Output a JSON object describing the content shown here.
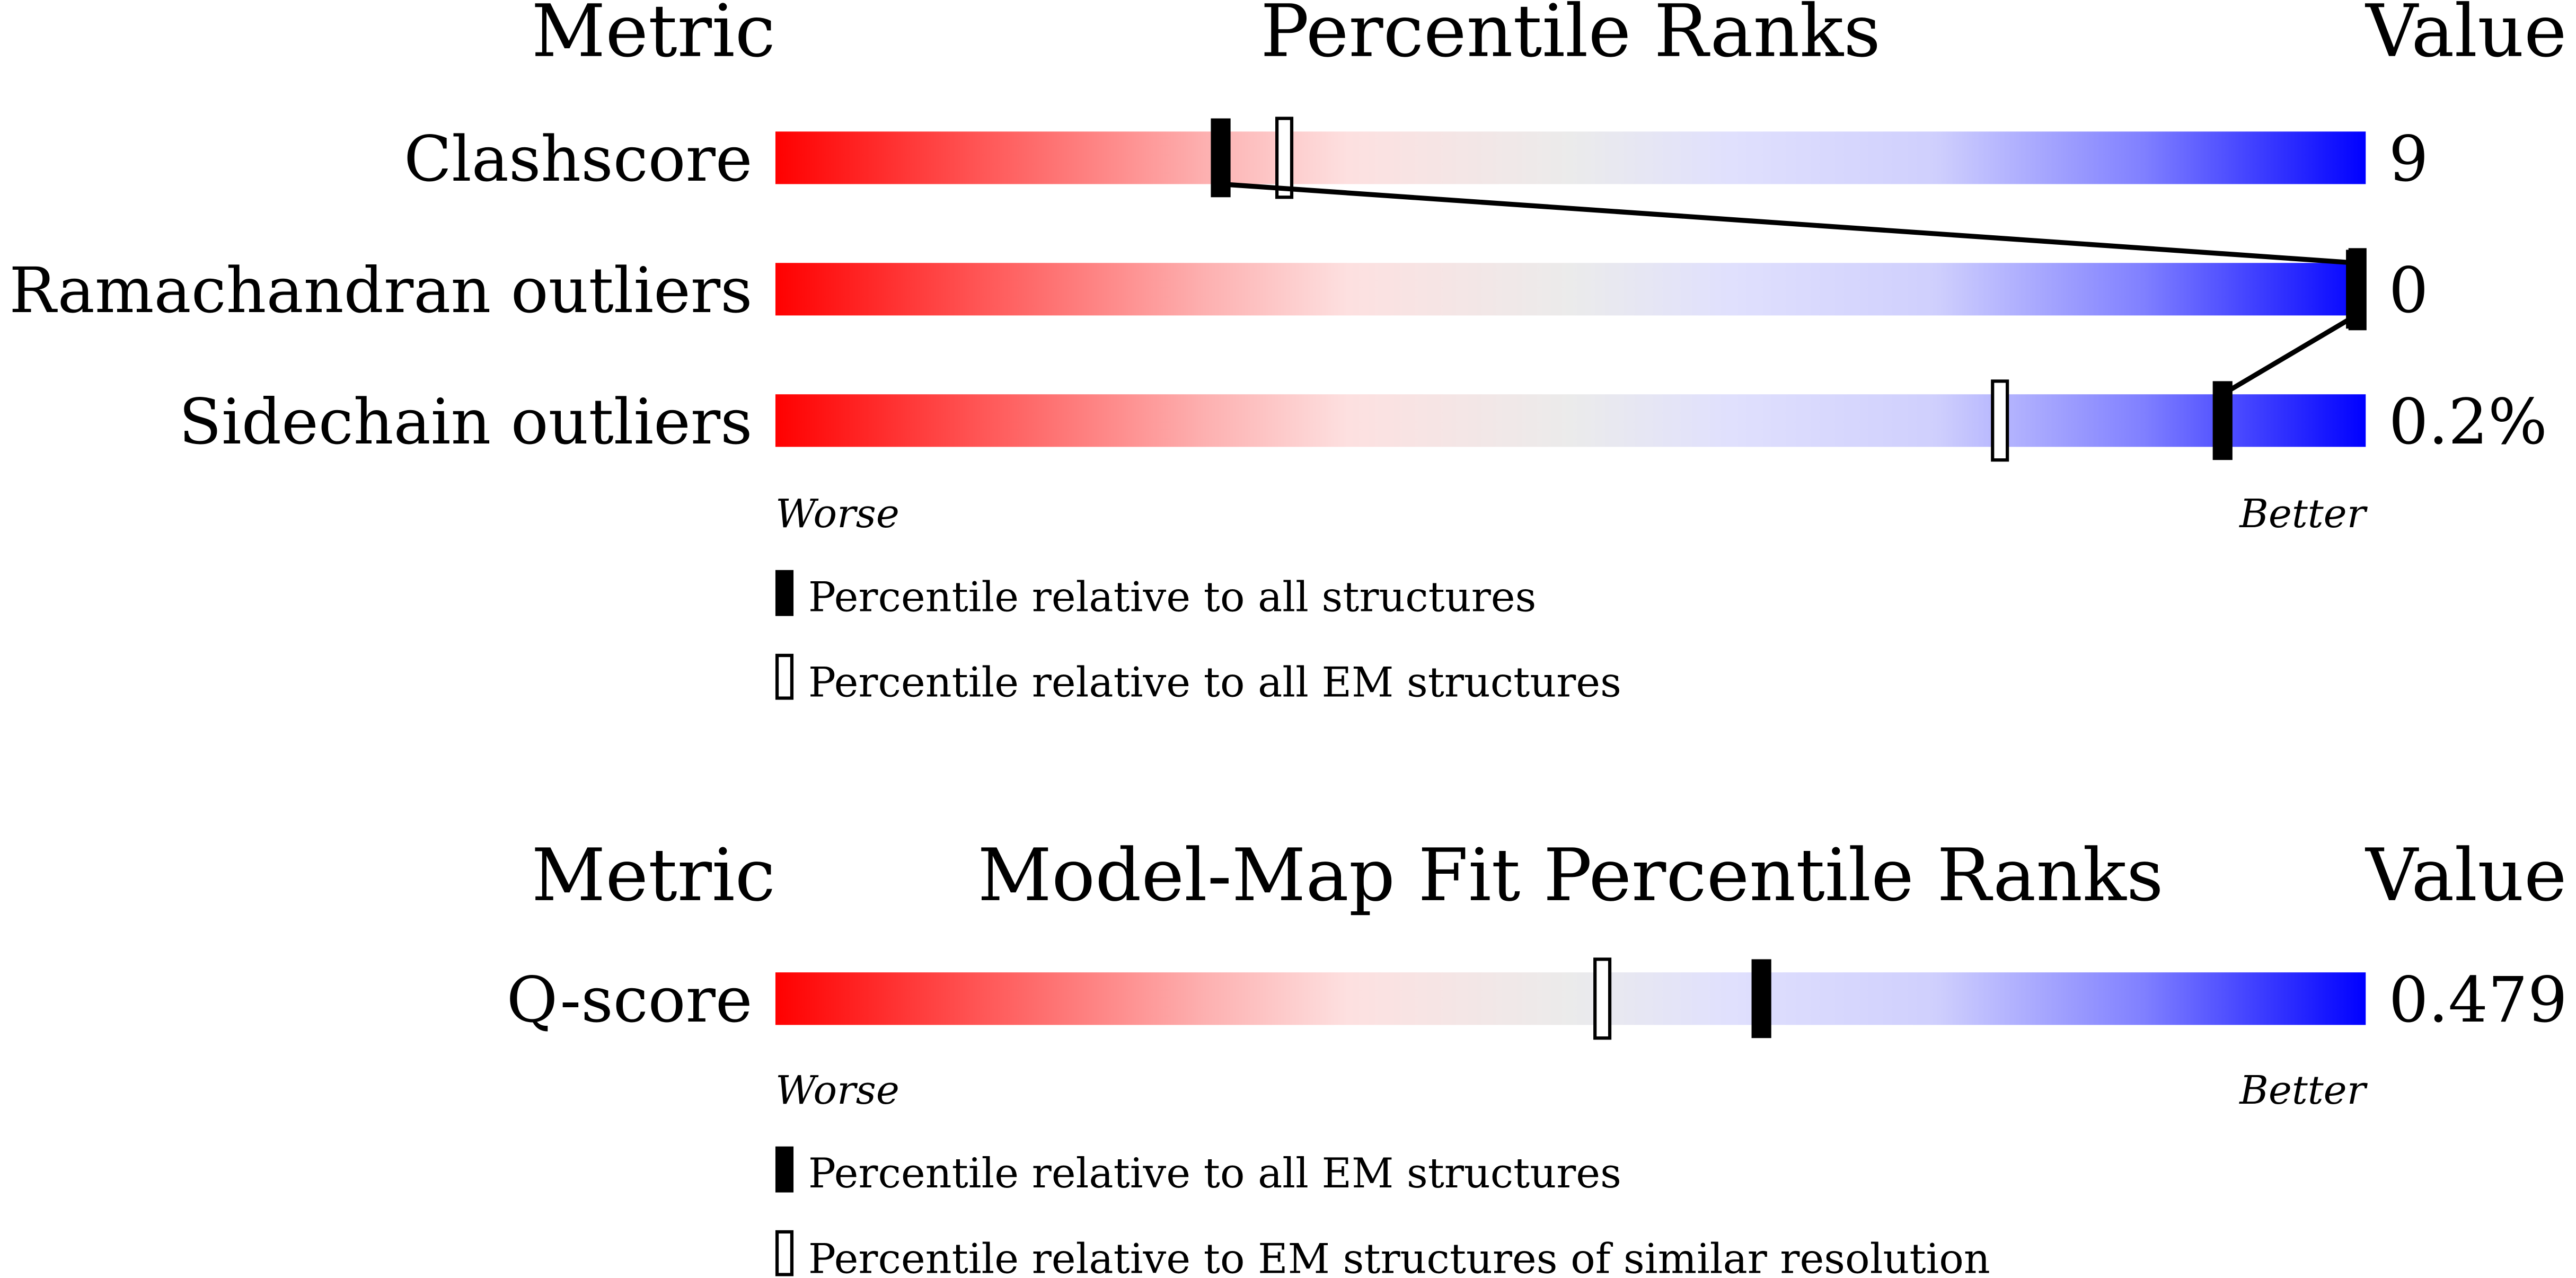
{
  "chart_data": [
    {
      "type": "percentile-slider",
      "header": {
        "metric": "Metric",
        "title": "Percentile Ranks",
        "value": "Value"
      },
      "xlim": [
        0,
        100
      ],
      "axis_labels": {
        "left": "Worse",
        "right": "Better"
      },
      "rows": [
        {
          "metric": "Clashscore",
          "value": "9",
          "percentile_all": 28,
          "percentile_secondary": 32
        },
        {
          "metric": "Ramachandran outliers",
          "value": "0",
          "percentile_all": 100,
          "percentile_secondary": 100
        },
        {
          "metric": "Sidechain outliers",
          "value": "0.2%",
          "percentile_all": 91,
          "percentile_secondary": 77
        }
      ],
      "legend": [
        {
          "marker": "filled",
          "label": "Percentile relative to all structures"
        },
        {
          "marker": "open",
          "label": "Percentile relative to all EM structures"
        }
      ]
    },
    {
      "type": "percentile-slider",
      "header": {
        "metric": "Metric",
        "title": "Model-Map Fit Percentile Ranks",
        "value": "Value"
      },
      "xlim": [
        0,
        100
      ],
      "axis_labels": {
        "left": "Worse",
        "right": "Better"
      },
      "rows": [
        {
          "metric": "Q-score",
          "value": "0.479",
          "percentile_all": 62,
          "percentile_secondary": 52
        }
      ],
      "legend": [
        {
          "marker": "filled",
          "label": "Percentile relative to all EM structures"
        },
        {
          "marker": "open",
          "label": "Percentile relative to EM structures of similar resolution"
        }
      ]
    }
  ],
  "colors": {
    "worse": "#ff0000",
    "middle": "#ebebeb",
    "better": "#0000ff",
    "marker": "#000000"
  }
}
